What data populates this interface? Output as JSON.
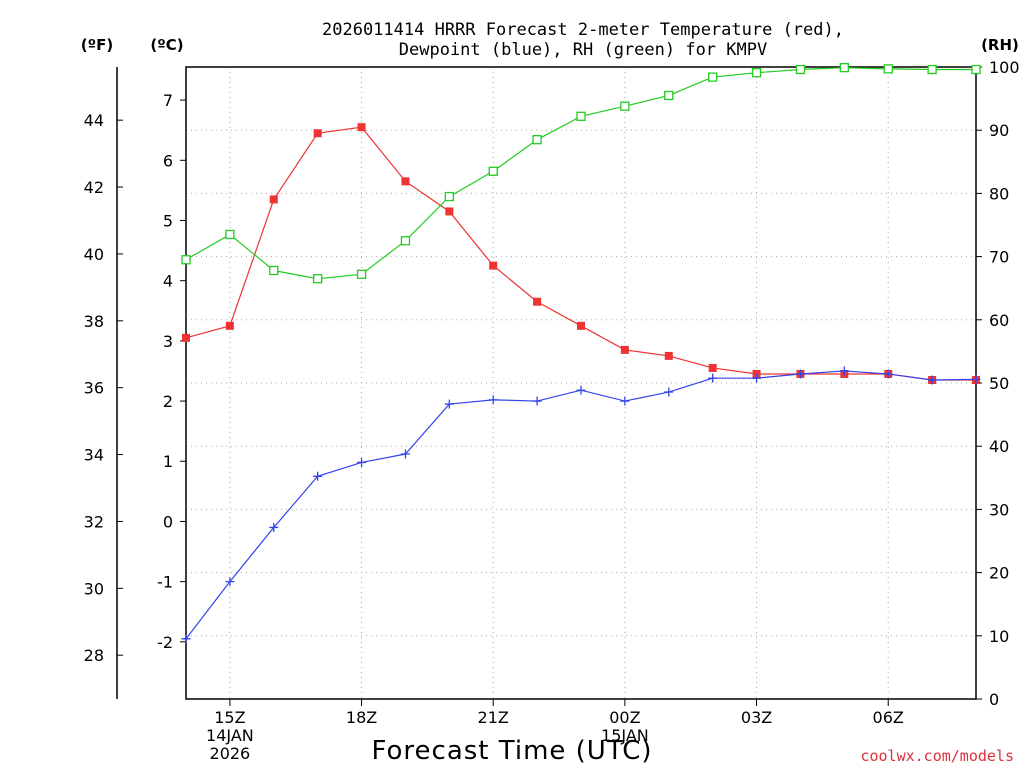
{
  "chart_data": {
    "type": "line",
    "title_line1": "2026011414 HRRR Forecast 2-meter Temperature (red),",
    "title_line2": "Dewpoint (blue), RH (green) for KMPV",
    "xlabel": "Forecast Time (UTC)",
    "credit": "coolwx.com/models",
    "units": {
      "f": "(ºF)",
      "c": "(ºC)",
      "rh": "(RH)"
    },
    "x_hours": [
      14,
      15,
      16,
      17,
      18,
      19,
      20,
      21,
      22,
      23,
      24,
      25,
      26,
      27,
      28,
      29,
      30,
      31,
      32
    ],
    "x_ticks": [
      {
        "hour": 15,
        "lines": [
          "15Z",
          "14JAN",
          "2026"
        ]
      },
      {
        "hour": 18,
        "lines": [
          "18Z"
        ]
      },
      {
        "hour": 21,
        "lines": [
          "21Z"
        ]
      },
      {
        "hour": 24,
        "lines": [
          "00Z",
          "15JAN"
        ]
      },
      {
        "hour": 27,
        "lines": [
          "03Z"
        ]
      },
      {
        "hour": 30,
        "lines": [
          "06Z"
        ]
      }
    ],
    "xlim": [
      14,
      32
    ],
    "y_celsius": {
      "lim": [
        -2.95,
        7.55
      ],
      "ticks": [
        "-2",
        "-1",
        "0",
        "1",
        "2",
        "3",
        "4",
        "5",
        "6",
        "7"
      ]
    },
    "y_fahrenheit": {
      "ticks": [
        "28",
        "30",
        "32",
        "34",
        "36",
        "38",
        "40",
        "42",
        "44"
      ]
    },
    "y_rh": {
      "lim": [
        0,
        100
      ],
      "ticks": [
        "0",
        "10",
        "20",
        "30",
        "40",
        "50",
        "60",
        "70",
        "80",
        "90",
        "100"
      ]
    },
    "grid": true,
    "series": [
      {
        "name": "Temperature",
        "axis": "celsius",
        "color": "#ee3333",
        "marker": "filled-square",
        "values": [
          3.05,
          3.25,
          5.35,
          6.45,
          6.55,
          5.65,
          5.15,
          4.25,
          3.65,
          3.25,
          2.85,
          2.75,
          2.55,
          2.45,
          2.45,
          2.45,
          2.45,
          2.35,
          2.35
        ]
      },
      {
        "name": "Dewpoint",
        "axis": "celsius",
        "color": "#3344ee",
        "marker": "plus",
        "values": [
          -1.95,
          -1.0,
          -0.1,
          0.75,
          0.98,
          1.12,
          1.95,
          2.02,
          2.0,
          2.18,
          2.0,
          2.15,
          2.38,
          2.38,
          2.45,
          2.5,
          2.45,
          2.35,
          2.36
        ]
      },
      {
        "name": "RH",
        "axis": "rh",
        "color": "#22cc22",
        "marker": "open-square",
        "values": [
          69.5,
          73.5,
          67.8,
          66.5,
          67.2,
          72.5,
          79.5,
          83.5,
          88.5,
          92.2,
          93.8,
          95.5,
          98.4,
          99.1,
          99.6,
          99.9,
          99.7,
          99.6,
          99.6
        ]
      }
    ]
  }
}
